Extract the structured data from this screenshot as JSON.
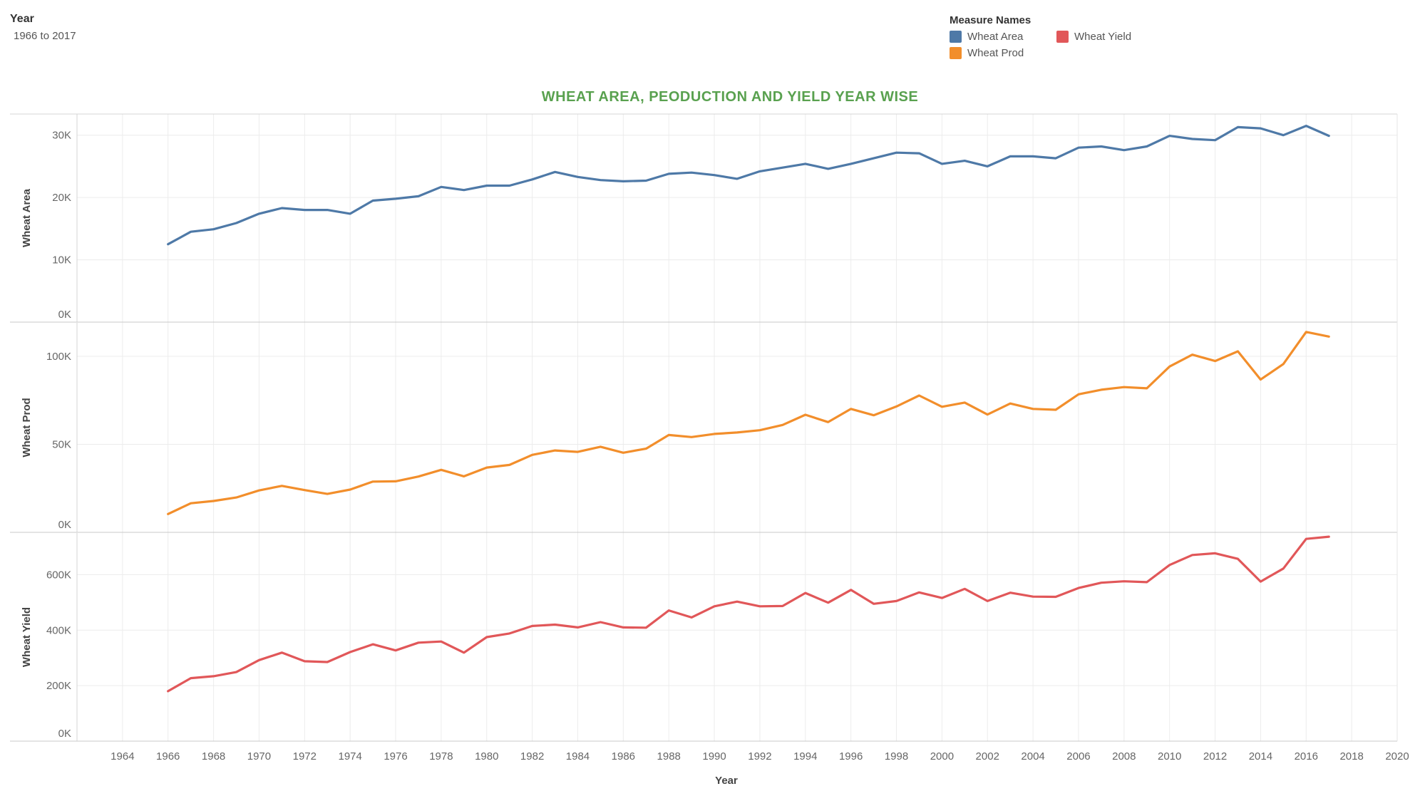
{
  "filter": {
    "title": "Year",
    "value": "1966 to 2017"
  },
  "legend": {
    "title": "Measure Names",
    "items": [
      {
        "label": "Wheat Area",
        "color": "#4e79a7"
      },
      {
        "label": "Wheat Yield",
        "color": "#e15759"
      },
      {
        "label": "Wheat Prod",
        "color": "#f28e2b"
      }
    ]
  },
  "chart_data": {
    "type": "line",
    "title": "WHEAT AREA, PEODUCTION AND YIELD YEAR WISE",
    "title_color": "#59a14f",
    "xlabel": "Year",
    "xlim": [
      1962,
      2020
    ],
    "x_ticks": [
      1964,
      1966,
      1968,
      1970,
      1972,
      1974,
      1976,
      1978,
      1980,
      1982,
      1984,
      1986,
      1988,
      1990,
      1992,
      1994,
      1996,
      1998,
      2000,
      2002,
      2004,
      2006,
      2008,
      2010,
      2012,
      2014,
      2016,
      2018,
      2020
    ],
    "x": [
      1966,
      1967,
      1968,
      1969,
      1970,
      1971,
      1972,
      1973,
      1974,
      1975,
      1976,
      1977,
      1978,
      1979,
      1980,
      1981,
      1982,
      1983,
      1984,
      1985,
      1986,
      1987,
      1988,
      1989,
      1990,
      1991,
      1992,
      1993,
      1994,
      1995,
      1996,
      1997,
      1998,
      1999,
      2000,
      2001,
      2002,
      2003,
      2004,
      2005,
      2006,
      2007,
      2008,
      2009,
      2010,
      2011,
      2012,
      2013,
      2014,
      2015,
      2016,
      2017
    ],
    "grid": true,
    "panels": [
      {
        "ylabel": "Wheat Area",
        "color": "#4e79a7",
        "ylim": [
          0,
          33400
        ],
        "y_ticks": [
          0,
          10000,
          20000,
          30000
        ],
        "y_tick_labels": [
          "0K",
          "10K",
          "20K",
          "30K"
        ],
        "values": [
          12500,
          14500,
          14900,
          15900,
          17400,
          18300,
          18000,
          18000,
          17400,
          19500,
          19800,
          20200,
          21700,
          21200,
          21900,
          21900,
          22900,
          24100,
          23300,
          22800,
          22600,
          22700,
          23800,
          24000,
          23600,
          23000,
          24200,
          24800,
          25400,
          24600,
          25400,
          26300,
          27200,
          27100,
          25400,
          25900,
          25000,
          26600,
          26600,
          26300,
          28000,
          28200,
          27600,
          28200,
          29900,
          29400,
          29200,
          31300,
          31100,
          30000,
          31500,
          29900
        ]
      },
      {
        "ylabel": "Wheat Prod",
        "color": "#f28e2b",
        "ylim": [
          0,
          119000
        ],
        "y_ticks": [
          0,
          50000,
          100000
        ],
        "y_tick_labels": [
          "0K",
          "50K",
          "100K"
        ],
        "values": [
          10400,
          16500,
          17800,
          19800,
          23800,
          26400,
          24000,
          21800,
          24300,
          28800,
          29000,
          31700,
          35500,
          31800,
          36800,
          38300,
          44000,
          46500,
          45700,
          48600,
          45200,
          47500,
          55300,
          54100,
          55900,
          56700,
          58000,
          61000,
          66800,
          62600,
          70100,
          66500,
          71500,
          77700,
          71300,
          73700,
          66900,
          73200,
          70100,
          69600,
          78400,
          81000,
          82500,
          81800,
          94200,
          100900,
          97300,
          102800,
          86800,
          95600,
          113800,
          111200
        ]
      },
      {
        "ylabel": "Wheat Yield",
        "color": "#e15759",
        "ylim": [
          0,
          750000
        ],
        "y_ticks": [
          0,
          200000,
          400000,
          600000
        ],
        "y_tick_labels": [
          "0K",
          "200K",
          "400K",
          "600K"
        ],
        "values": [
          180000,
          227000,
          234000,
          249000,
          292000,
          319000,
          288000,
          285000,
          321000,
          349000,
          327000,
          355000,
          359000,
          319000,
          375000,
          388000,
          415000,
          420000,
          410000,
          429000,
          410000,
          409000,
          471000,
          446000,
          486000,
          503000,
          486000,
          487000,
          534000,
          499000,
          545000,
          495000,
          505000,
          536000,
          516000,
          549000,
          505000,
          535000,
          521000,
          520000,
          552000,
          571000,
          576000,
          573000,
          635000,
          671000,
          677000,
          657000,
          575000,
          622000,
          729000,
          737000
        ]
      }
    ]
  }
}
